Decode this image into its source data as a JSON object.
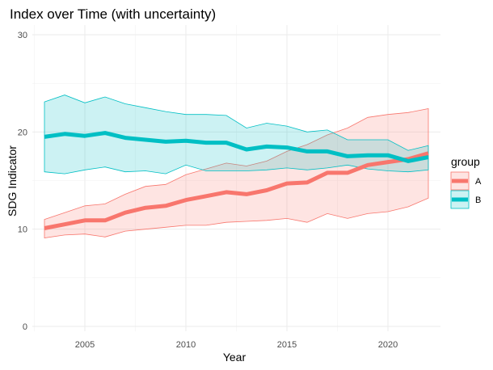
{
  "chart_data": {
    "type": "line",
    "title": "Index over Time (with uncertainty)",
    "xlabel": "Year",
    "ylabel": "SDG Indicator",
    "xlim": [
      2002.4,
      2022.6
    ],
    "ylim": [
      -0.5,
      31
    ],
    "x_ticks": [
      2005,
      2010,
      2015,
      2020
    ],
    "y_ticks": [
      0,
      10,
      20,
      30
    ],
    "x_tick_labels": [
      "2005",
      "2010",
      "2015",
      "2020"
    ],
    "y_tick_labels": [
      "0",
      "10",
      "20",
      "30"
    ],
    "grid": true,
    "legend": {
      "title": "group",
      "placement": "right"
    },
    "x": [
      2003,
      2004,
      2005,
      2006,
      2007,
      2008,
      2009,
      2010,
      2011,
      2012,
      2013,
      2014,
      2015,
      2016,
      2017,
      2018,
      2019,
      2020,
      2021,
      2022
    ],
    "series": [
      {
        "name": "A",
        "color": "#F8766D",
        "values": [
          10.1,
          10.5,
          10.9,
          10.9,
          11.7,
          12.2,
          12.4,
          13.0,
          13.4,
          13.8,
          13.6,
          14.0,
          14.7,
          14.8,
          15.8,
          15.8,
          16.6,
          16.9,
          17.2,
          17.8
        ],
        "lower": [
          9.1,
          9.4,
          9.5,
          9.2,
          9.8,
          10.0,
          10.2,
          10.4,
          10.4,
          10.7,
          10.8,
          10.9,
          11.1,
          10.7,
          11.6,
          11.1,
          11.6,
          11.8,
          12.3,
          13.2
        ],
        "upper": [
          11.0,
          11.7,
          12.4,
          12.6,
          13.6,
          14.4,
          14.6,
          15.6,
          16.2,
          16.8,
          16.5,
          17.0,
          18.0,
          18.7,
          19.7,
          20.4,
          21.5,
          21.8,
          22.0,
          22.4
        ]
      },
      {
        "name": "B",
        "color": "#00BFC4",
        "values": [
          19.5,
          19.8,
          19.6,
          19.9,
          19.4,
          19.2,
          19.0,
          19.1,
          18.9,
          18.9,
          18.2,
          18.5,
          18.4,
          18.0,
          18.0,
          17.5,
          17.6,
          17.6,
          17.0,
          17.4
        ],
        "lower": [
          15.9,
          15.7,
          16.1,
          16.4,
          15.9,
          16.0,
          15.7,
          16.6,
          16.0,
          16.0,
          16.0,
          16.1,
          16.3,
          16.1,
          16.3,
          16.6,
          16.2,
          16.0,
          15.9,
          16.1
        ],
        "upper": [
          23.1,
          23.8,
          23.0,
          23.6,
          22.9,
          22.5,
          22.1,
          21.8,
          21.8,
          21.7,
          20.4,
          20.9,
          20.6,
          20.0,
          20.2,
          19.2,
          19.2,
          19.2,
          18.1,
          18.6
        ]
      }
    ]
  }
}
